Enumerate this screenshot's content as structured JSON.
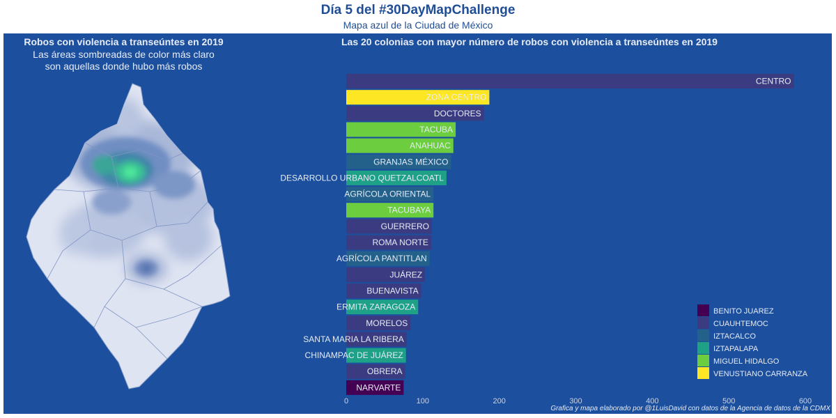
{
  "header": {
    "title": "Día 5 del #30DayMapChallenge",
    "subtitle": "Mapa azul de la Ciudad de México"
  },
  "map": {
    "title": "Robos con violencia a transeúntes en 2019",
    "subtitle_line1": "Las áreas sombreadas de color más claro",
    "subtitle_line2": "son aquellas donde hubo más robos"
  },
  "caption": "Grafica y mapa elaborado por @1LuisDavid con datos de la Agencia de datos de la CDMX",
  "colors": {
    "BENITO JUAREZ": "#440154",
    "CUAUHTEMOC": "#3b3b82",
    "IZTACALCO": "#23608a",
    "IZTAPALAPA": "#1fa188",
    "MIGUEL HIDALGO": "#6ccd3f",
    "VENUSTIANO CARRANZA": "#fde725"
  },
  "chart_data": {
    "type": "bar",
    "orientation": "horizontal",
    "title": "Las 20 colonias con mayor número de robos con violencia a transeúntes en 2019",
    "xlabel": "",
    "ylabel": "",
    "xlim": [
      0,
      600
    ],
    "xticks": [
      0,
      100,
      200,
      300,
      400,
      500,
      600
    ],
    "grid": false,
    "legend_position": "bottom-right",
    "legend": [
      "BENITO JUAREZ",
      "CUAUHTEMOC",
      "IZTACALCO",
      "IZTAPALAPA",
      "MIGUEL HIDALGO",
      "VENUSTIANO CARRANZA"
    ],
    "bars": [
      {
        "category": "CENTRO",
        "value": 585,
        "group": "CUAUHTEMOC"
      },
      {
        "category": "ZONA CENTRO",
        "value": 187,
        "group": "VENUSTIANO CARRANZA"
      },
      {
        "category": "DOCTORES",
        "value": 180,
        "group": "CUAUHTEMOC"
      },
      {
        "category": "TACUBA",
        "value": 143,
        "group": "MIGUEL HIDALGO"
      },
      {
        "category": "ANAHUAC",
        "value": 140,
        "group": "MIGUEL HIDALGO"
      },
      {
        "category": "GRANJAS MÉXICO",
        "value": 137,
        "group": "IZTACALCO"
      },
      {
        "category": "DESARROLLO URBANO QUETZALCOATL",
        "value": 131,
        "group": "IZTAPALAPA"
      },
      {
        "category": "AGRÍCOLA ORIENTAL",
        "value": 114,
        "group": "IZTACALCO"
      },
      {
        "category": "TACUBAYA",
        "value": 114,
        "group": "MIGUEL HIDALGO"
      },
      {
        "category": "GUERRERO",
        "value": 112,
        "group": "CUAUHTEMOC"
      },
      {
        "category": "ROMA NORTE",
        "value": 111,
        "group": "CUAUHTEMOC"
      },
      {
        "category": "AGRÍCOLA PANTITLAN",
        "value": 109,
        "group": "IZTACALCO"
      },
      {
        "category": "JUÁREZ",
        "value": 103,
        "group": "CUAUHTEMOC"
      },
      {
        "category": "BUENAVISTA",
        "value": 98,
        "group": "CUAUHTEMOC"
      },
      {
        "category": "ERMITA ZARAGOZA",
        "value": 94,
        "group": "IZTAPALAPA"
      },
      {
        "category": "MORELOS",
        "value": 84,
        "group": "CUAUHTEMOC"
      },
      {
        "category": "SANTA MARIA LA RIBERA",
        "value": 79,
        "group": "CUAUHTEMOC"
      },
      {
        "category": "CHINAMPAC DE JUÁREZ",
        "value": 78,
        "group": "IZTAPALAPA"
      },
      {
        "category": "OBRERA",
        "value": 77,
        "group": "CUAUHTEMOC"
      },
      {
        "category": "NARVARTE",
        "value": 75,
        "group": "BENITO JUAREZ"
      }
    ]
  }
}
